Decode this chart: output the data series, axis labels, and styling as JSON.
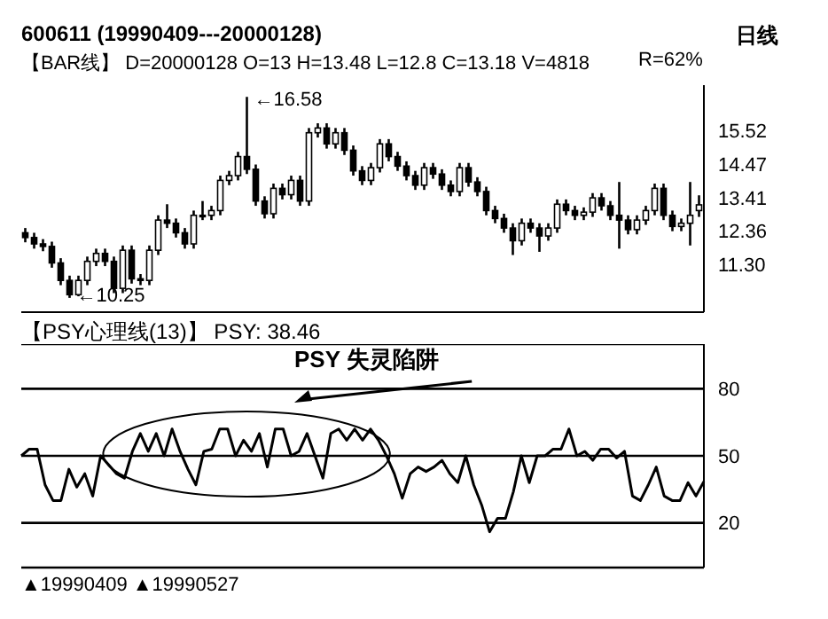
{
  "chart_data": [
    {
      "type": "candlestick",
      "title": "600611    (19990409---20000128)",
      "subtitle": "【BAR线】 D=20000128 O=13 H=13.48 L=12.8 C=13.18 V=4818",
      "annotations": [
        "日线",
        "R=62%",
        "←16.58",
        "←10.25"
      ],
      "categories": [
        null,
        null,
        null,
        null,
        null,
        null,
        null,
        null,
        null,
        null,
        null,
        null,
        null,
        null,
        null,
        null,
        null,
        null,
        null,
        null,
        null,
        null,
        null,
        null,
        null,
        null,
        null,
        null,
        null,
        null,
        null,
        null,
        null,
        null,
        null,
        null,
        null,
        null,
        null,
        null,
        null,
        null,
        null,
        null,
        null,
        null,
        null,
        null,
        null,
        null,
        null,
        null,
        null,
        null,
        null,
        null,
        null,
        null,
        null,
        null,
        null,
        null,
        null,
        null,
        null,
        null,
        null,
        null,
        null,
        null,
        null,
        null,
        null,
        null,
        null,
        null,
        null
      ],
      "ohlc": [
        [
          12.3,
          12.45,
          12.0,
          12.15
        ],
        [
          12.15,
          12.3,
          11.8,
          11.95
        ],
        [
          11.95,
          12.1,
          11.72,
          11.87
        ],
        [
          11.87,
          12.02,
          11.2,
          11.35
        ],
        [
          11.35,
          11.5,
          10.65,
          10.8
        ],
        [
          10.8,
          10.95,
          10.25,
          10.35
        ],
        [
          10.35,
          10.95,
          10.3,
          10.8
        ],
        [
          10.8,
          11.55,
          10.65,
          11.4
        ],
        [
          11.4,
          11.8,
          11.25,
          11.65
        ],
        [
          11.65,
          11.8,
          11.25,
          11.4
        ],
        [
          11.4,
          11.55,
          10.4,
          10.55
        ],
        [
          10.55,
          11.9,
          10.4,
          11.75
        ],
        [
          11.75,
          11.9,
          10.7,
          10.85
        ],
        [
          10.85,
          11.0,
          10.65,
          10.8
        ],
        [
          10.8,
          11.9,
          10.65,
          11.75
        ],
        [
          11.75,
          12.85,
          11.6,
          12.7
        ],
        [
          12.7,
          13.2,
          12.45,
          12.6
        ],
        [
          12.6,
          12.75,
          12.15,
          12.3
        ],
        [
          12.3,
          12.45,
          11.8,
          11.95
        ],
        [
          11.95,
          13.0,
          11.8,
          12.85
        ],
        [
          12.85,
          13.3,
          12.7,
          12.85
        ],
        [
          12.85,
          13.15,
          12.7,
          13.0
        ],
        [
          13.0,
          14.1,
          12.85,
          13.95
        ],
        [
          13.95,
          14.25,
          13.8,
          14.1
        ],
        [
          14.1,
          14.85,
          13.95,
          14.7
        ],
        [
          14.7,
          16.58,
          14.15,
          14.3
        ],
        [
          14.3,
          14.45,
          13.15,
          13.3
        ],
        [
          13.3,
          13.45,
          12.75,
          12.9
        ],
        [
          12.9,
          13.85,
          12.75,
          13.7
        ],
        [
          13.7,
          13.85,
          13.35,
          13.5
        ],
        [
          13.5,
          14.1,
          13.35,
          13.95
        ],
        [
          13.95,
          14.1,
          13.15,
          13.3
        ],
        [
          13.3,
          15.6,
          13.15,
          15.45
        ],
        [
          15.45,
          15.75,
          15.3,
          15.6
        ],
        [
          15.6,
          15.75,
          14.95,
          15.1
        ],
        [
          15.1,
          15.6,
          14.95,
          15.45
        ],
        [
          15.45,
          15.6,
          14.75,
          14.9
        ],
        [
          14.9,
          15.05,
          14.1,
          14.25
        ],
        [
          14.25,
          14.4,
          13.8,
          13.95
        ],
        [
          13.95,
          14.5,
          13.8,
          14.35
        ],
        [
          14.35,
          15.25,
          14.2,
          15.1
        ],
        [
          15.1,
          15.25,
          14.55,
          14.7
        ],
        [
          14.7,
          14.85,
          14.25,
          14.4
        ],
        [
          14.4,
          14.55,
          13.95,
          14.1
        ],
        [
          14.1,
          14.25,
          13.65,
          13.8
        ],
        [
          13.8,
          14.5,
          13.65,
          14.35
        ],
        [
          14.35,
          14.5,
          14.0,
          14.15
        ],
        [
          14.15,
          14.3,
          13.65,
          13.8
        ],
        [
          13.8,
          13.95,
          13.45,
          13.6
        ],
        [
          13.6,
          14.5,
          13.45,
          14.35
        ],
        [
          14.35,
          14.5,
          13.75,
          13.9
        ],
        [
          13.9,
          14.05,
          13.45,
          13.6
        ],
        [
          13.6,
          13.75,
          12.85,
          13.0
        ],
        [
          13.0,
          13.15,
          12.6,
          12.75
        ],
        [
          12.75,
          12.9,
          12.3,
          12.45
        ],
        [
          12.45,
          12.6,
          11.6,
          12.05
        ],
        [
          12.05,
          12.75,
          11.9,
          12.6
        ],
        [
          12.6,
          12.75,
          12.3,
          12.45
        ],
        [
          12.45,
          12.6,
          11.7,
          12.2
        ],
        [
          12.2,
          12.6,
          12.05,
          12.45
        ],
        [
          12.45,
          13.35,
          12.3,
          13.2
        ],
        [
          13.2,
          13.35,
          12.85,
          13.0
        ],
        [
          13.0,
          13.15,
          12.7,
          12.85
        ],
        [
          12.85,
          13.1,
          12.7,
          12.95
        ],
        [
          12.95,
          13.55,
          12.8,
          13.4
        ],
        [
          13.4,
          13.55,
          13.0,
          13.15
        ],
        [
          13.15,
          13.3,
          12.7,
          12.85
        ],
        [
          12.85,
          13.9,
          11.8,
          12.7
        ],
        [
          12.7,
          12.85,
          12.25,
          12.4
        ],
        [
          12.4,
          12.85,
          12.25,
          12.7
        ],
        [
          12.7,
          13.15,
          12.55,
          13.0
        ],
        [
          13.0,
          13.85,
          12.85,
          13.7
        ],
        [
          13.7,
          13.85,
          12.7,
          12.85
        ],
        [
          12.85,
          13.0,
          12.35,
          12.5
        ],
        [
          12.5,
          12.75,
          12.35,
          12.6
        ],
        [
          12.6,
          13.9,
          11.9,
          12.85
        ],
        [
          13,
          13.48,
          12.8,
          13.18
        ]
      ],
      "color": "#000000",
      "ylim": [
        9.8,
        16.95
      ],
      "yticks": [
        15.52,
        14.47,
        13.41,
        12.36,
        {
          "value": 11.3,
          "label": "11.30"
        }
      ],
      "tick_labels": "y"
    },
    {
      "type": "line",
      "title": "【PSY心理线(13)】 PSY: 38.46",
      "annotations": [
        "PSY 失灵陷阱",
        "▲19990409 ▲19990527"
      ],
      "categories": [
        null,
        null,
        null,
        null,
        null,
        null,
        null,
        null,
        null,
        null,
        null,
        null,
        null,
        null,
        null,
        null,
        null,
        null,
        null,
        null,
        null,
        null,
        null,
        null,
        null,
        null,
        null,
        null,
        null,
        null,
        null,
        null,
        null,
        null,
        null,
        null,
        null,
        null,
        null,
        null,
        null,
        null,
        null,
        null,
        null,
        null,
        null,
        null,
        null,
        null,
        null,
        null,
        null,
        null,
        null,
        null,
        null,
        null,
        null,
        null,
        null,
        null,
        null,
        null,
        null,
        null,
        null,
        null,
        null,
        null,
        null,
        null,
        null,
        null,
        null,
        null,
        null,
        null,
        null,
        null,
        null,
        null,
        null,
        null,
        null,
        null,
        null
      ],
      "values": [
        50,
        53,
        53,
        37,
        30,
        30,
        44,
        36,
        42,
        32,
        50,
        46,
        42,
        40,
        52,
        60,
        52,
        60,
        50,
        62,
        52,
        44,
        37,
        52,
        53,
        62,
        62,
        50,
        57,
        52,
        60,
        45,
        62,
        62,
        50,
        52,
        60,
        50,
        40,
        60,
        62,
        57,
        62,
        57,
        62,
        57,
        50,
        42,
        31,
        42,
        45,
        43,
        45,
        48,
        42,
        38,
        50,
        37,
        28,
        16,
        22,
        22,
        34,
        50,
        38,
        50,
        50,
        53,
        53,
        62,
        50,
        52,
        48,
        53,
        53,
        49,
        52,
        32,
        30,
        37,
        45,
        32,
        30,
        30,
        38,
        32,
        38.46
      ],
      "color": "#000000",
      "ylim": [
        0,
        100
      ],
      "yticks": [
        20,
        50,
        80
      ],
      "grid": "y",
      "tick_labels": "y"
    }
  ]
}
